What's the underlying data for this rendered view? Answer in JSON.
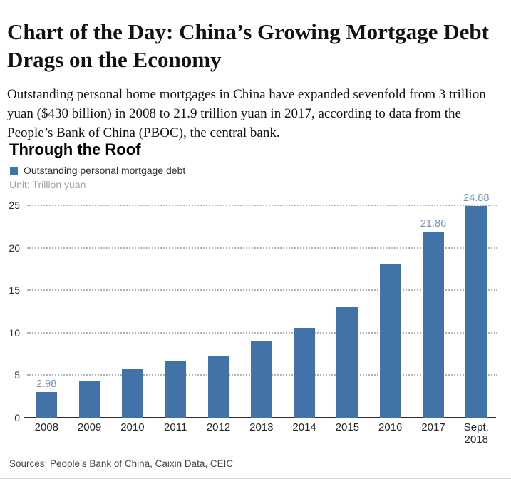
{
  "article": {
    "headline": "Chart of the Day: China’s Growing Mortgage Debt Drags on the Economy",
    "body": "Outstanding personal home mortgages in China have expanded sevenfold from 3 trillion yuan ($430 billion) in 2008 to 21.9 trillion yuan in 2017, according to data from the People’s Bank of China (PBOC), the central bank."
  },
  "chart": {
    "title": "Through the Roof",
    "legend_label": "Outstanding personal mortgage debt",
    "unit_label": "Unit: Trillion yuan",
    "sources": "Sources: People’s Bank of China, Caixin Data, CEIC"
  },
  "chart_data": {
    "type": "bar",
    "title": "Through the Roof",
    "subtitle": "Unit: Trillion yuan",
    "unit": "Trillion yuan",
    "categories": [
      "2008",
      "2009",
      "2010",
      "2011",
      "2012",
      "2013",
      "2014",
      "2015",
      "2016",
      "2017",
      "Sept. 2018"
    ],
    "values": [
      2.98,
      4.4,
      5.7,
      6.6,
      7.3,
      9.0,
      10.6,
      13.1,
      18.0,
      21.86,
      24.88
    ],
    "labeled_points": [
      {
        "category": "2008",
        "label": "2.98"
      },
      {
        "category": "2017",
        "label": "21.86"
      },
      {
        "category": "Sept. 2018",
        "label": "24.88"
      }
    ],
    "xlabel": "",
    "ylabel": "Trillion yuan",
    "ylim": [
      0,
      25
    ],
    "yticks": [
      0,
      5,
      10,
      15,
      20,
      25
    ],
    "grid": "horizontal-dotted",
    "legend": [
      "Outstanding personal mortgage debt"
    ],
    "legend_position": "top-left",
    "colors": {
      "bar": "#4173a9",
      "value_label": "#7195c3",
      "gridline": "#b3b3b3",
      "axis": "#2e2e2e"
    }
  }
}
